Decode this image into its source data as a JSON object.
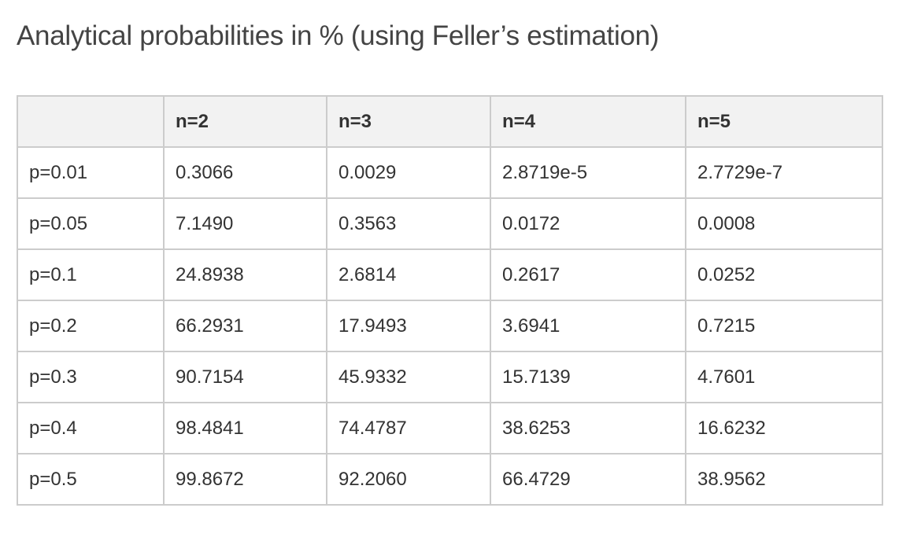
{
  "page": {
    "title": "Analytical probabilities in % (using Feller’s estimation)"
  },
  "table": {
    "header": {
      "corner": "",
      "columns": [
        "n=2",
        "n=3",
        "n=4",
        "n=5"
      ]
    },
    "rows": [
      {
        "label": "p=0.01",
        "values": [
          "0.3066",
          "0.0029",
          "2.8719e-5",
          "2.7729e-7"
        ]
      },
      {
        "label": "p=0.05",
        "values": [
          "7.1490",
          "0.3563",
          "0.0172",
          "0.0008"
        ]
      },
      {
        "label": "p=0.1",
        "values": [
          "24.8938",
          "2.6814",
          "0.2617",
          "0.0252"
        ]
      },
      {
        "label": "p=0.2",
        "values": [
          "66.2931",
          "17.9493",
          "3.6941",
          "0.7215"
        ]
      },
      {
        "label": "p=0.3",
        "values": [
          "90.7154",
          "45.9332",
          "15.7139",
          "4.7601"
        ]
      },
      {
        "label": "p=0.4",
        "values": [
          "98.4841",
          "74.4787",
          "38.6253",
          "16.6232"
        ]
      },
      {
        "label": "p=0.5",
        "values": [
          "99.8672",
          "92.2060",
          "66.4729",
          "38.9562"
        ]
      }
    ]
  },
  "colors": {
    "header_background": "#f2f2f2",
    "border": "#cccccc",
    "text": "#333333",
    "title_text": "#444444"
  }
}
